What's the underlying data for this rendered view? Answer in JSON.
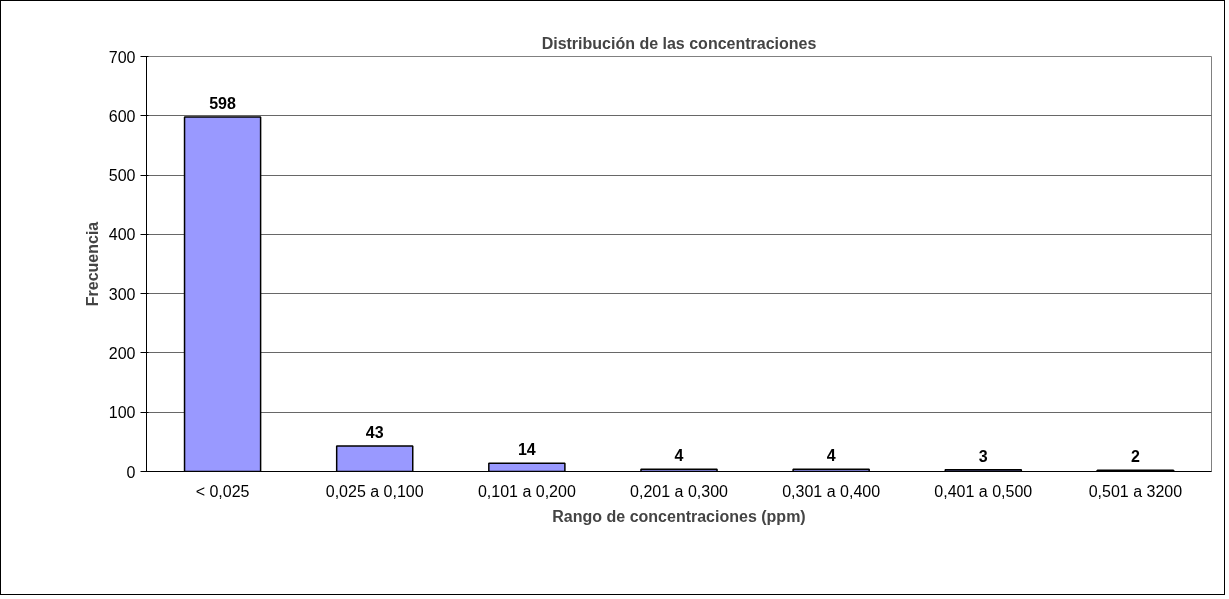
{
  "chart_data": {
    "type": "bar",
    "title": "Distribución de las concentraciones",
    "xlabel": "Rango de concentraciones (ppm)",
    "ylabel": "Frecuencia",
    "categories": [
      "< 0,025",
      "0,025 a 0,100",
      "0,101 a 0,200",
      "0,201 a 0,300",
      "0,301 a 0,400",
      "0,401 a 0,500",
      "0,501 a 3200"
    ],
    "values": [
      598,
      43,
      14,
      4,
      4,
      3,
      2
    ],
    "color": "#9999ff",
    "ylim": [
      0,
      700
    ],
    "yticks": [
      0,
      100,
      200,
      300,
      400,
      500,
      600,
      700
    ],
    "grid": "y",
    "data_labels": true
  }
}
